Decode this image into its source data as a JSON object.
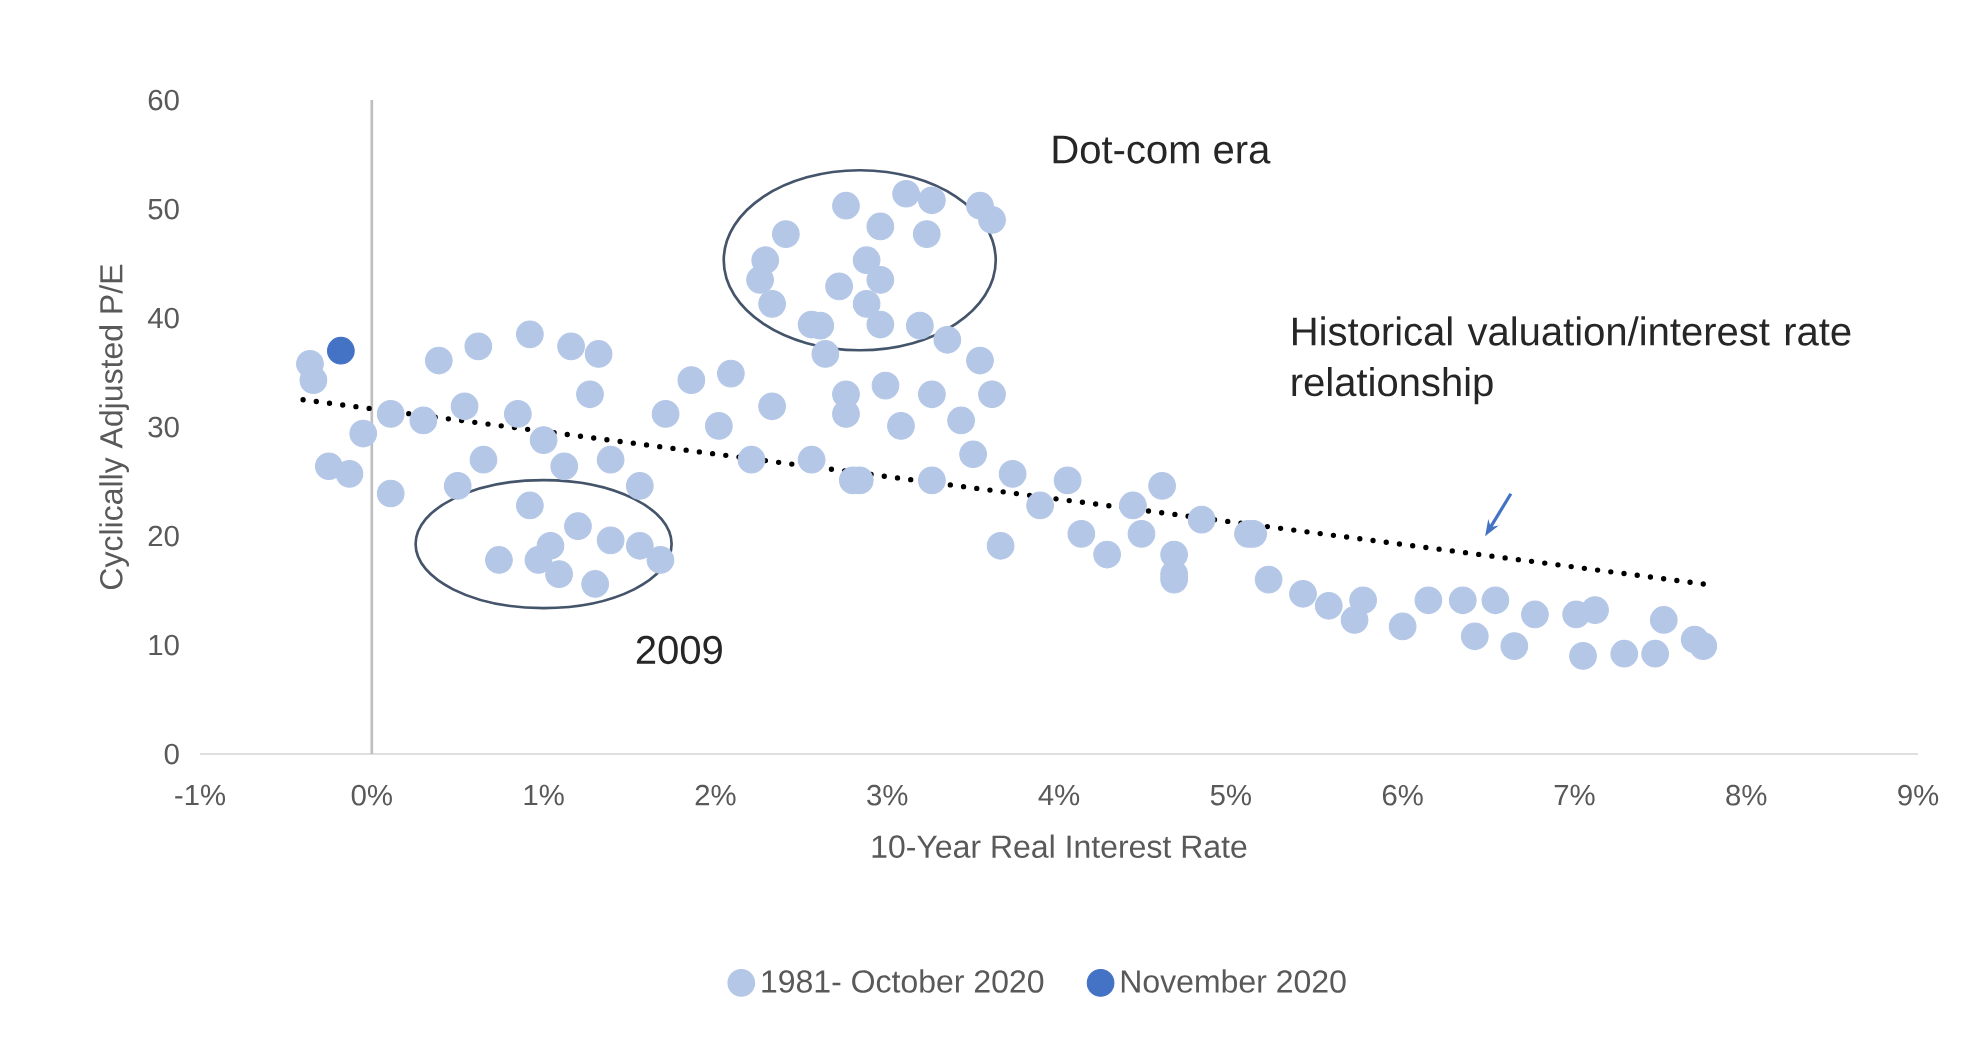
{
  "chart_data": {
    "type": "scatter",
    "xlabel": "10-Year Real Interest Rate",
    "ylabel": "Cyclically Adjusted P/E",
    "xlim": [
      -1,
      9
    ],
    "ylim": [
      0,
      60
    ],
    "xticks": [
      {
        "value": -1,
        "label": "-1%"
      },
      {
        "value": 0,
        "label": "0%"
      },
      {
        "value": 1,
        "label": "1%"
      },
      {
        "value": 2,
        "label": "2%"
      },
      {
        "value": 3,
        "label": "3%"
      },
      {
        "value": 4,
        "label": "4%"
      },
      {
        "value": 5,
        "label": "5%"
      },
      {
        "value": 6,
        "label": "6%"
      },
      {
        "value": 7,
        "label": "7%"
      },
      {
        "value": 8,
        "label": "8%"
      },
      {
        "value": 9,
        "label": "9%"
      }
    ],
    "yticks": [
      0,
      10,
      20,
      30,
      40,
      50,
      60
    ],
    "legend": "bottom",
    "grid": false,
    "ref_lines": [
      {
        "axis": "x",
        "value": 0,
        "color": "#bfbfbf"
      }
    ],
    "annotations": [
      "Dot-com era",
      "2009",
      "Historical valuation/interest rate relationship"
    ],
    "series": [
      {
        "name": "1981- October 2020",
        "color": "#b4c7e7",
        "marker": "circle",
        "x": [
          -0.36,
          -0.34,
          -0.25,
          -0.13,
          -0.05,
          0.11,
          0.11,
          0.3,
          0.39,
          0.5,
          0.54,
          0.62,
          0.65,
          0.85,
          0.92,
          0.92,
          1.0,
          1.12,
          1.16,
          1.27,
          1.32,
          1.39,
          0.74,
          0.97,
          1.04,
          1.09,
          1.3,
          1.2,
          1.39,
          1.56,
          1.68,
          1.56,
          1.71,
          1.86,
          2.09,
          2.02,
          2.21,
          2.33,
          2.56,
          2.61,
          2.76,
          2.8,
          2.76,
          3.11,
          3.26,
          3.54,
          3.61,
          2.96,
          3.23,
          2.41,
          2.29,
          2.26,
          2.33,
          2.88,
          2.96,
          2.72,
          2.88,
          2.56,
          2.96,
          3.19,
          3.35,
          3.54,
          2.64,
          2.76,
          2.99,
          3.26,
          3.61,
          3.08,
          3.43,
          3.5,
          2.84,
          3.26,
          3.73,
          3.89,
          3.66,
          4.05,
          4.13,
          4.28,
          4.43,
          4.6,
          4.67,
          4.83,
          4.67,
          5.13,
          4.48,
          4.67,
          5.1,
          5.22,
          5.42,
          5.57,
          5.72,
          5.77,
          6.0,
          6.15,
          6.35,
          6.42,
          6.54,
          6.65,
          6.77,
          7.01,
          7.12,
          7.05,
          7.29,
          7.52,
          7.47,
          7.75,
          7.7
        ],
        "values": [
          35.8,
          34.3,
          26.4,
          25.7,
          29.4,
          23.9,
          31.2,
          30.6,
          36.1,
          24.6,
          31.9,
          37.4,
          27.0,
          31.2,
          38.5,
          22.8,
          28.8,
          26.4,
          37.4,
          33.0,
          36.7,
          27.0,
          17.8,
          17.8,
          19.1,
          16.5,
          15.6,
          20.9,
          19.6,
          19.1,
          17.8,
          24.6,
          31.2,
          34.3,
          34.9,
          30.1,
          27.0,
          31.9,
          27.0,
          39.3,
          31.2,
          25.1,
          50.3,
          51.4,
          50.8,
          50.3,
          49.0,
          48.4,
          47.7,
          47.7,
          45.3,
          43.5,
          41.3,
          45.3,
          43.5,
          42.9,
          41.3,
          39.4,
          39.4,
          39.3,
          38.0,
          36.1,
          36.7,
          33.0,
          33.8,
          33.0,
          33.0,
          30.1,
          30.6,
          27.5,
          25.1,
          25.1,
          25.7,
          22.8,
          19.1,
          25.1,
          20.2,
          18.3,
          22.8,
          24.6,
          18.3,
          21.5,
          16.0,
          20.2,
          20.2,
          16.5,
          20.2,
          16.0,
          14.7,
          13.6,
          12.3,
          14.1,
          11.7,
          14.1,
          14.1,
          10.8,
          14.1,
          9.9,
          12.8,
          12.8,
          13.2,
          9.0,
          9.2,
          12.3,
          9.2,
          9.9,
          10.5
        ]
      },
      {
        "name": "November 2020",
        "color": "#4472c4",
        "marker": "circle",
        "x": [
          -0.18
        ],
        "values": [
          37.0
        ]
      },
      {
        "color": "#000000",
        "type": "line",
        "line_style": "dotted",
        "marker": "none",
        "x": [
          -0.4,
          7.75
        ],
        "values": [
          32.5,
          15.6
        ]
      }
    ]
  }
}
